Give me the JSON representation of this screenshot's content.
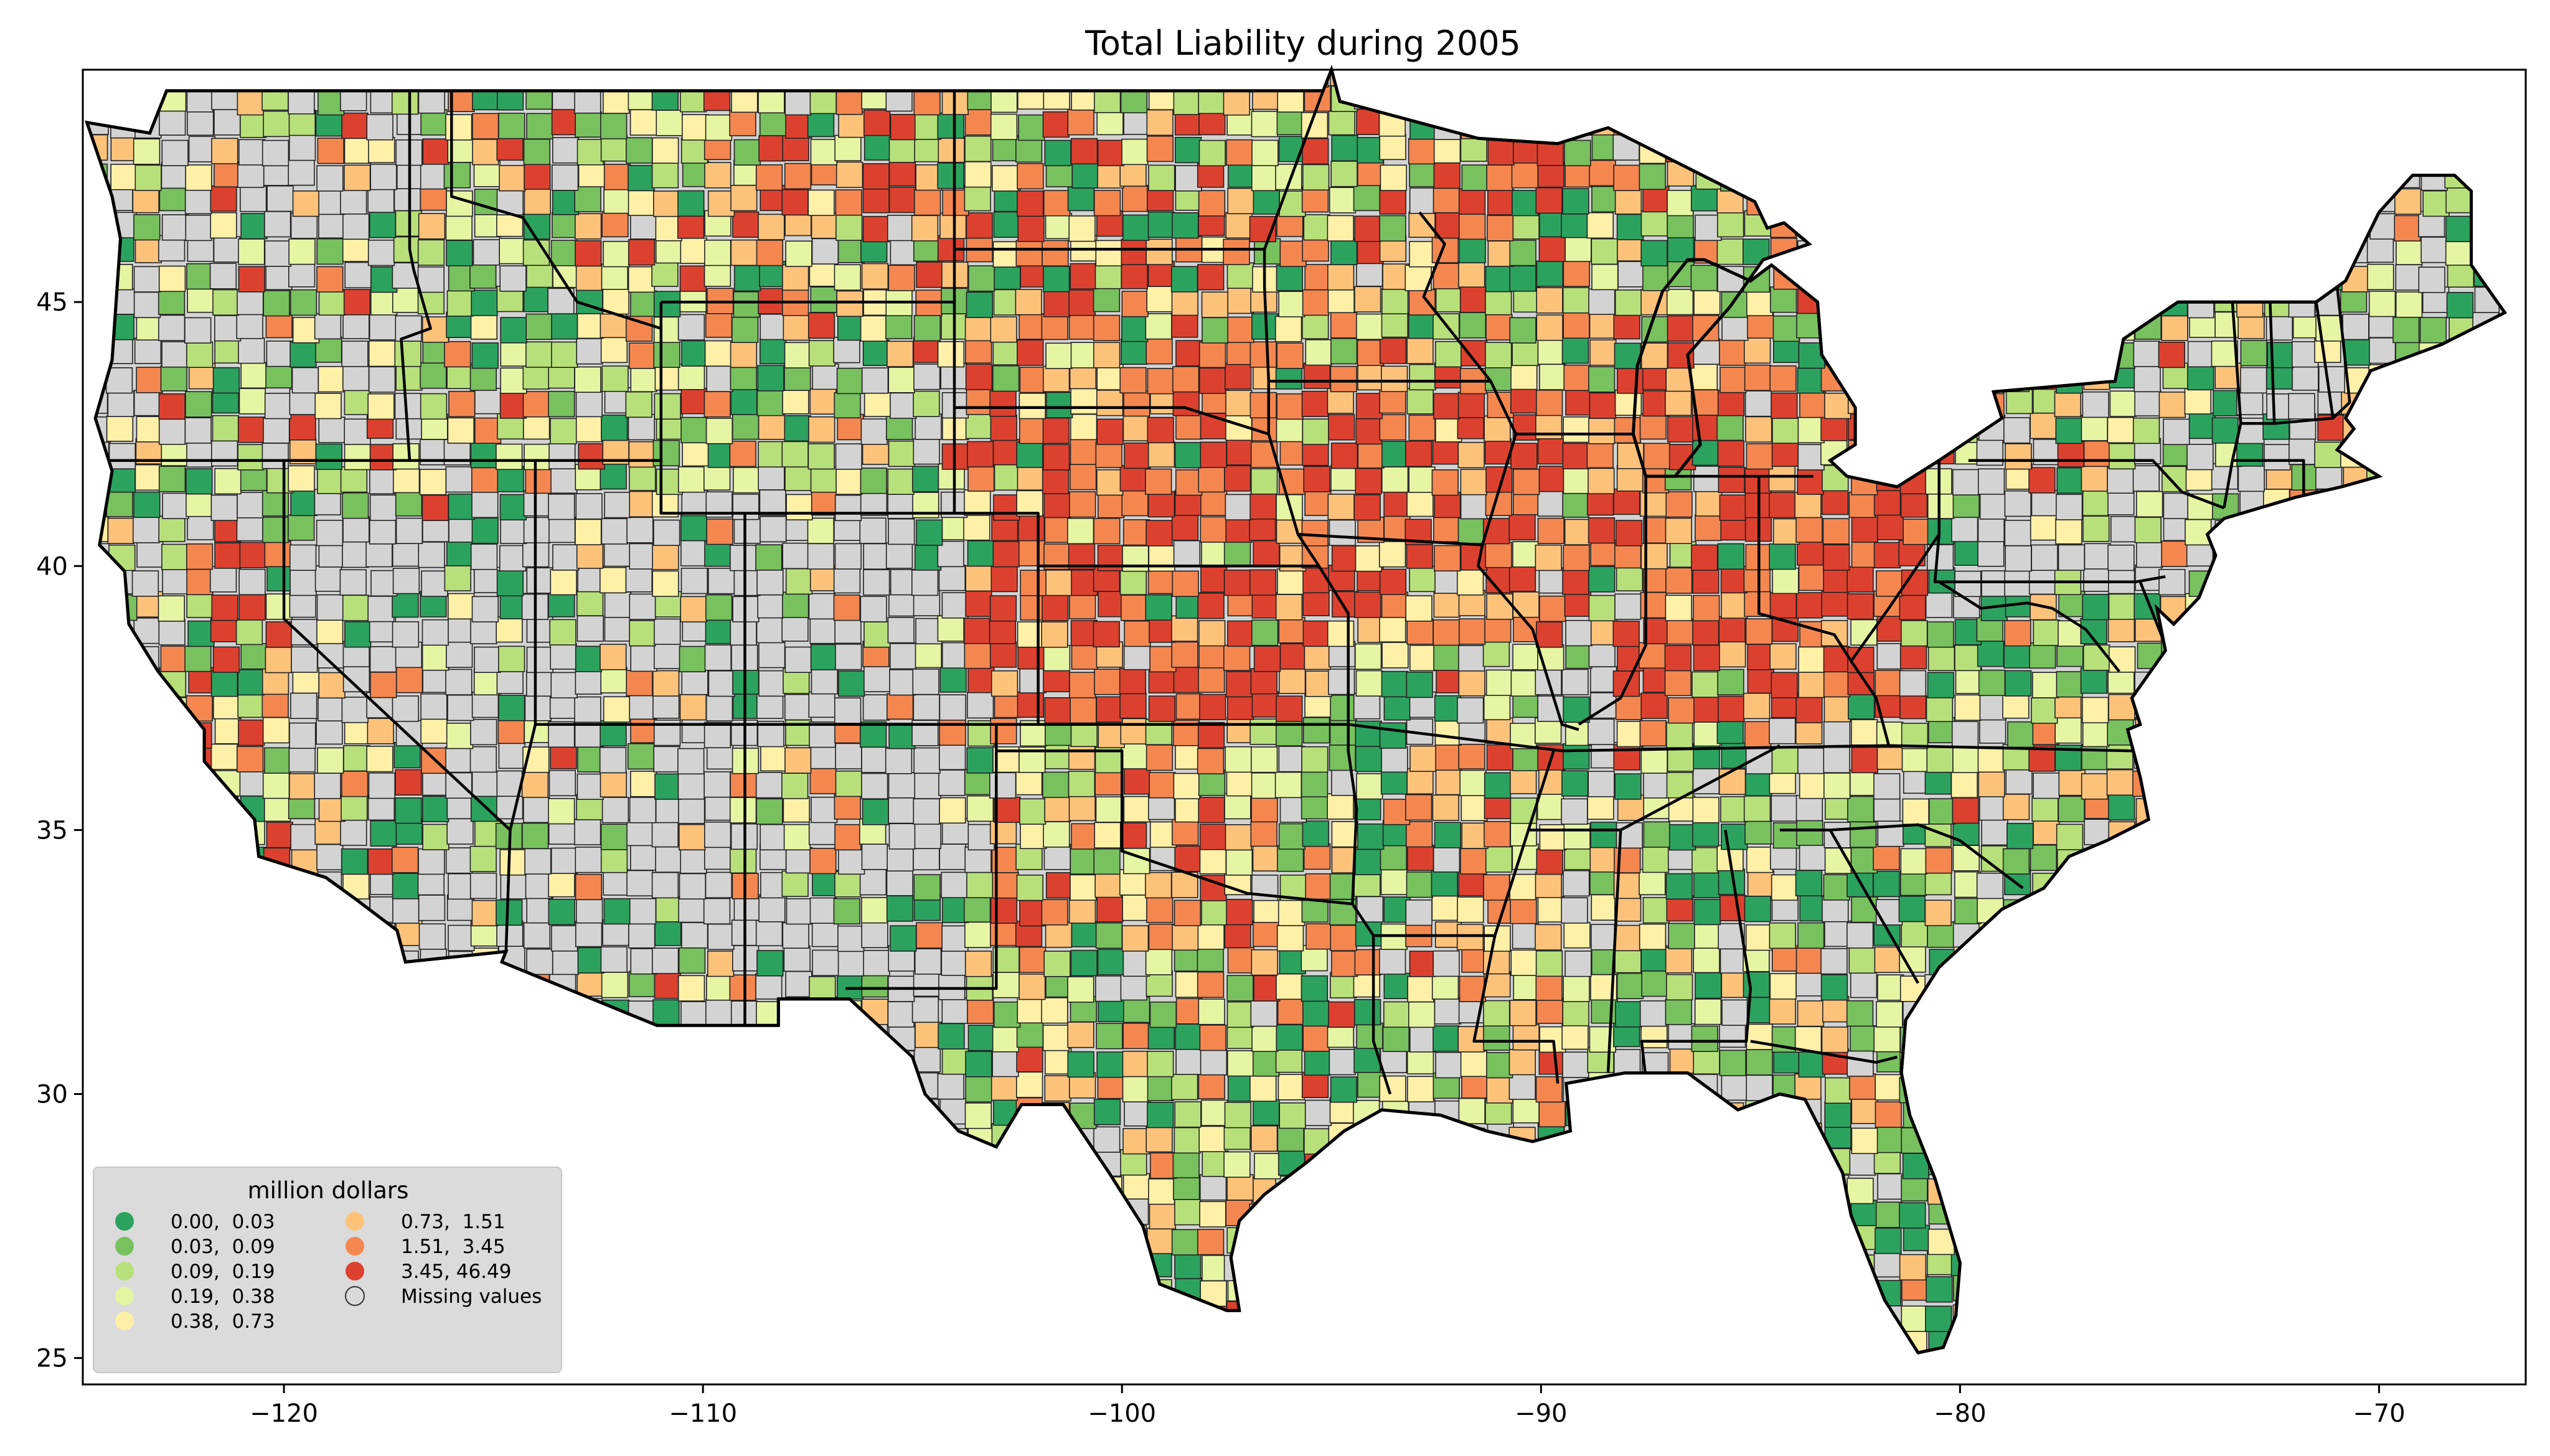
{
  "title": "Total Liability during 2005",
  "x_ticks": [
    {
      "value": -120,
      "label": "−120"
    },
    {
      "value": -110,
      "label": "−110"
    },
    {
      "value": -100,
      "label": "−100"
    },
    {
      "value": -90,
      "label": "−90"
    },
    {
      "value": -80,
      "label": "−80"
    },
    {
      "value": -70,
      "label": "−70"
    }
  ],
  "y_ticks": [
    {
      "value": 45,
      "label": "45"
    },
    {
      "value": 40,
      "label": "40"
    },
    {
      "value": 35,
      "label": "35"
    },
    {
      "value": 30,
      "label": "30"
    },
    {
      "value": 25,
      "label": "25"
    }
  ],
  "legend": {
    "title": "million dollars",
    "entries": [
      {
        "label": "0.00,  0.03",
        "color": "#2ca25f"
      },
      {
        "label": "0.03,  0.09",
        "color": "#78c15e"
      },
      {
        "label": "0.09,  0.19",
        "color": "#b8e07a"
      },
      {
        "label": "0.19,  0.38",
        "color": "#e6f5a3"
      },
      {
        "label": "0.38,  0.73",
        "color": "#fff0a8"
      },
      {
        "label": "0.73,  1.51",
        "color": "#fdc27a"
      },
      {
        "label": "1.51,  3.45",
        "color": "#f48750"
      },
      {
        "label": "3.45, 46.49",
        "color": "#dc412f"
      },
      {
        "label": "Missing values",
        "color": "#d3d3d3"
      }
    ]
  },
  "chart_data": {
    "type": "choropleth",
    "title": "Total Liability during 2005",
    "xlim": [
      -124.8,
      -66.5
    ],
    "ylim": [
      24.5,
      49.4
    ],
    "legend_position": "lower-left",
    "legend_title": "million dollars",
    "classes": [
      {
        "min": 0.0,
        "max": 0.03,
        "color": "#2ca25f"
      },
      {
        "min": 0.03,
        "max": 0.09,
        "color": "#78c15e"
      },
      {
        "min": 0.09,
        "max": 0.19,
        "color": "#b8e07a"
      },
      {
        "min": 0.19,
        "max": 0.38,
        "color": "#e6f5a3"
      },
      {
        "min": 0.38,
        "max": 0.73,
        "color": "#fff0a8"
      },
      {
        "min": 0.73,
        "max": 1.51,
        "color": "#fdc27a"
      },
      {
        "min": 1.51,
        "max": 3.45,
        "color": "#f48750"
      },
      {
        "min": 3.45,
        "max": 46.49,
        "color": "#dc412f"
      }
    ],
    "missing_color": "#d3d3d3"
  }
}
